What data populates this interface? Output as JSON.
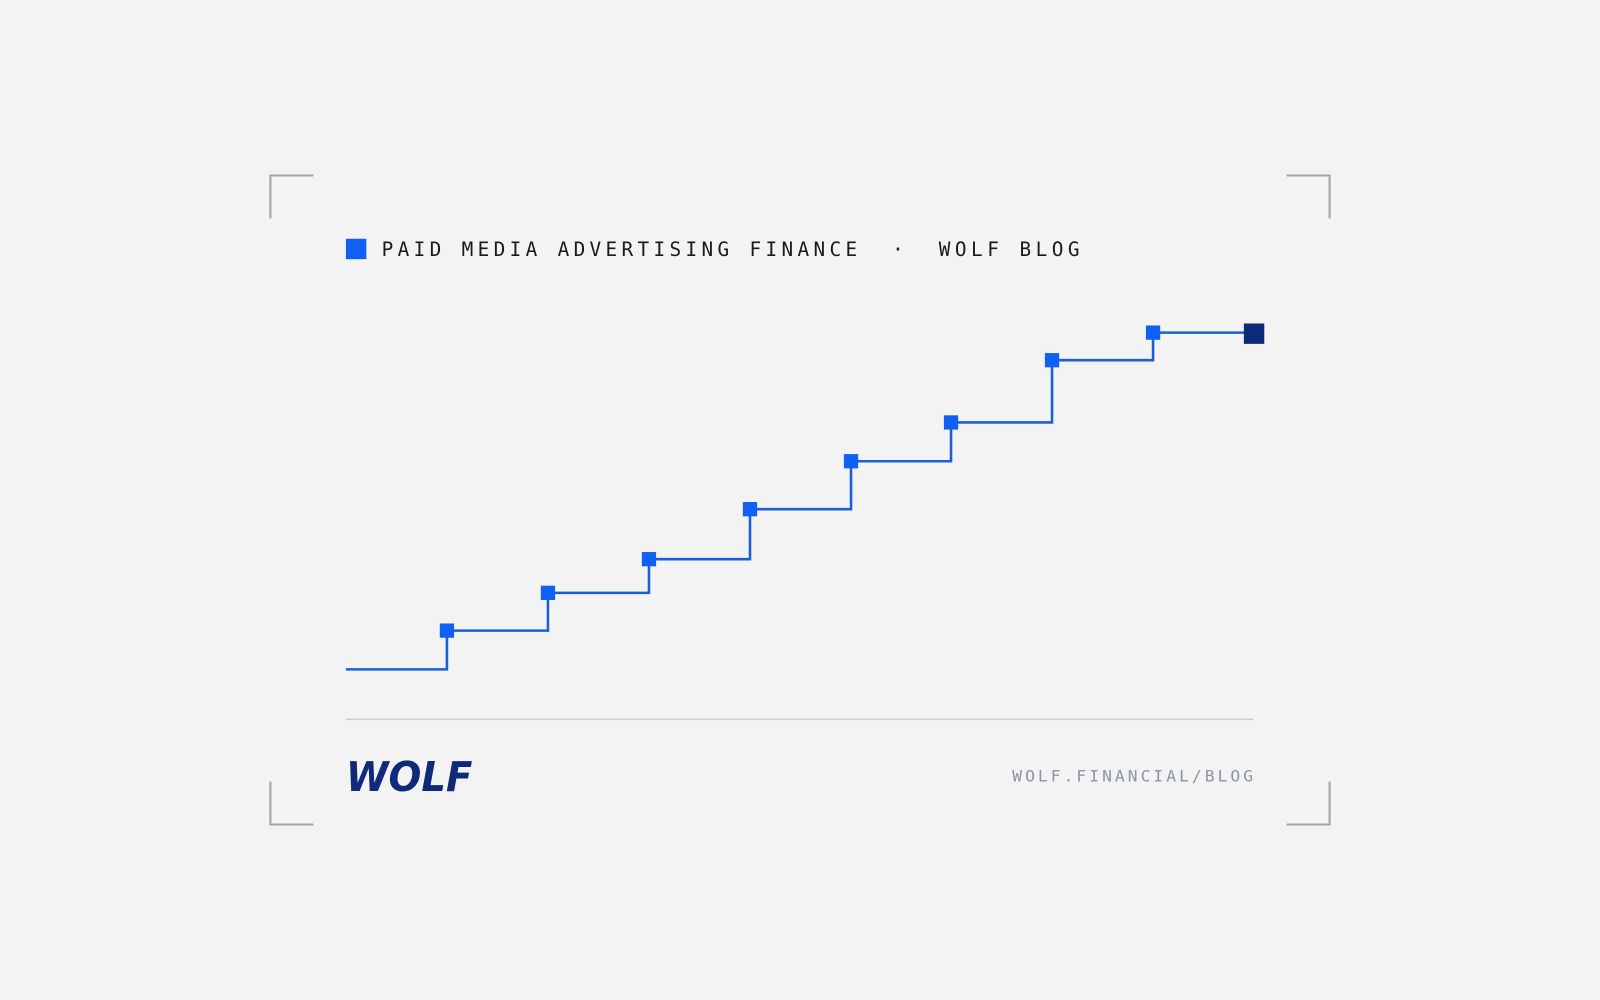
{
  "header": {
    "topic": "PAID MEDIA ADVERTISING FINANCE",
    "separator": "·",
    "site": "WOLF BLOG"
  },
  "footer": {
    "logo": "WOLF",
    "url": "WOLF.FINANCIAL/BLOG"
  }
}
